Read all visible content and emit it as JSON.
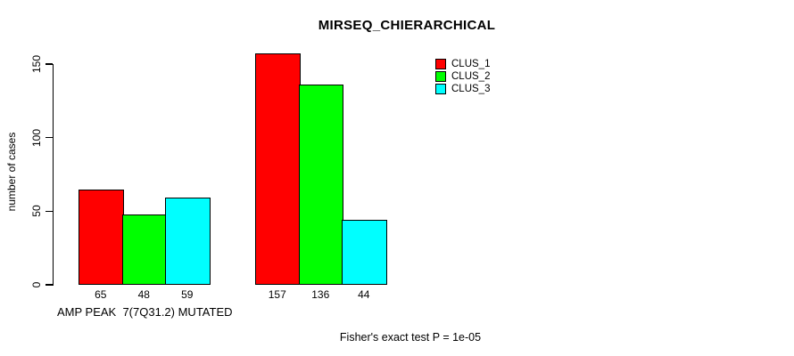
{
  "chart_data": {
    "type": "bar",
    "title": "MIRSEQ_CHIERARCHICAL",
    "ylabel": "number of cases",
    "xlabel": "",
    "yticks": [
      0,
      50,
      100,
      150
    ],
    "ylim": [
      0,
      170
    ],
    "grid": false,
    "categories": [
      "AMP PEAK  7(7Q31.2) MUTATED",
      ""
    ],
    "series": [
      {
        "name": "CLUS_1",
        "color": "#ff0000",
        "values": [
          65,
          157
        ]
      },
      {
        "name": "CLUS_2",
        "color": "#00ff00",
        "values": [
          48,
          136
        ]
      },
      {
        "name": "CLUS_3",
        "color": "#00ffff",
        "values": [
          59,
          44
        ]
      }
    ],
    "bar_value_labels_shown": true,
    "legend": {
      "position": "top-right",
      "entries": [
        "CLUS_1",
        "CLUS_2",
        "CLUS_3"
      ]
    },
    "footnote": "Fisher's exact test P = 1e-05",
    "colors": {
      "axis": "#000000",
      "text": "#000000",
      "background": "#ffffff"
    }
  }
}
